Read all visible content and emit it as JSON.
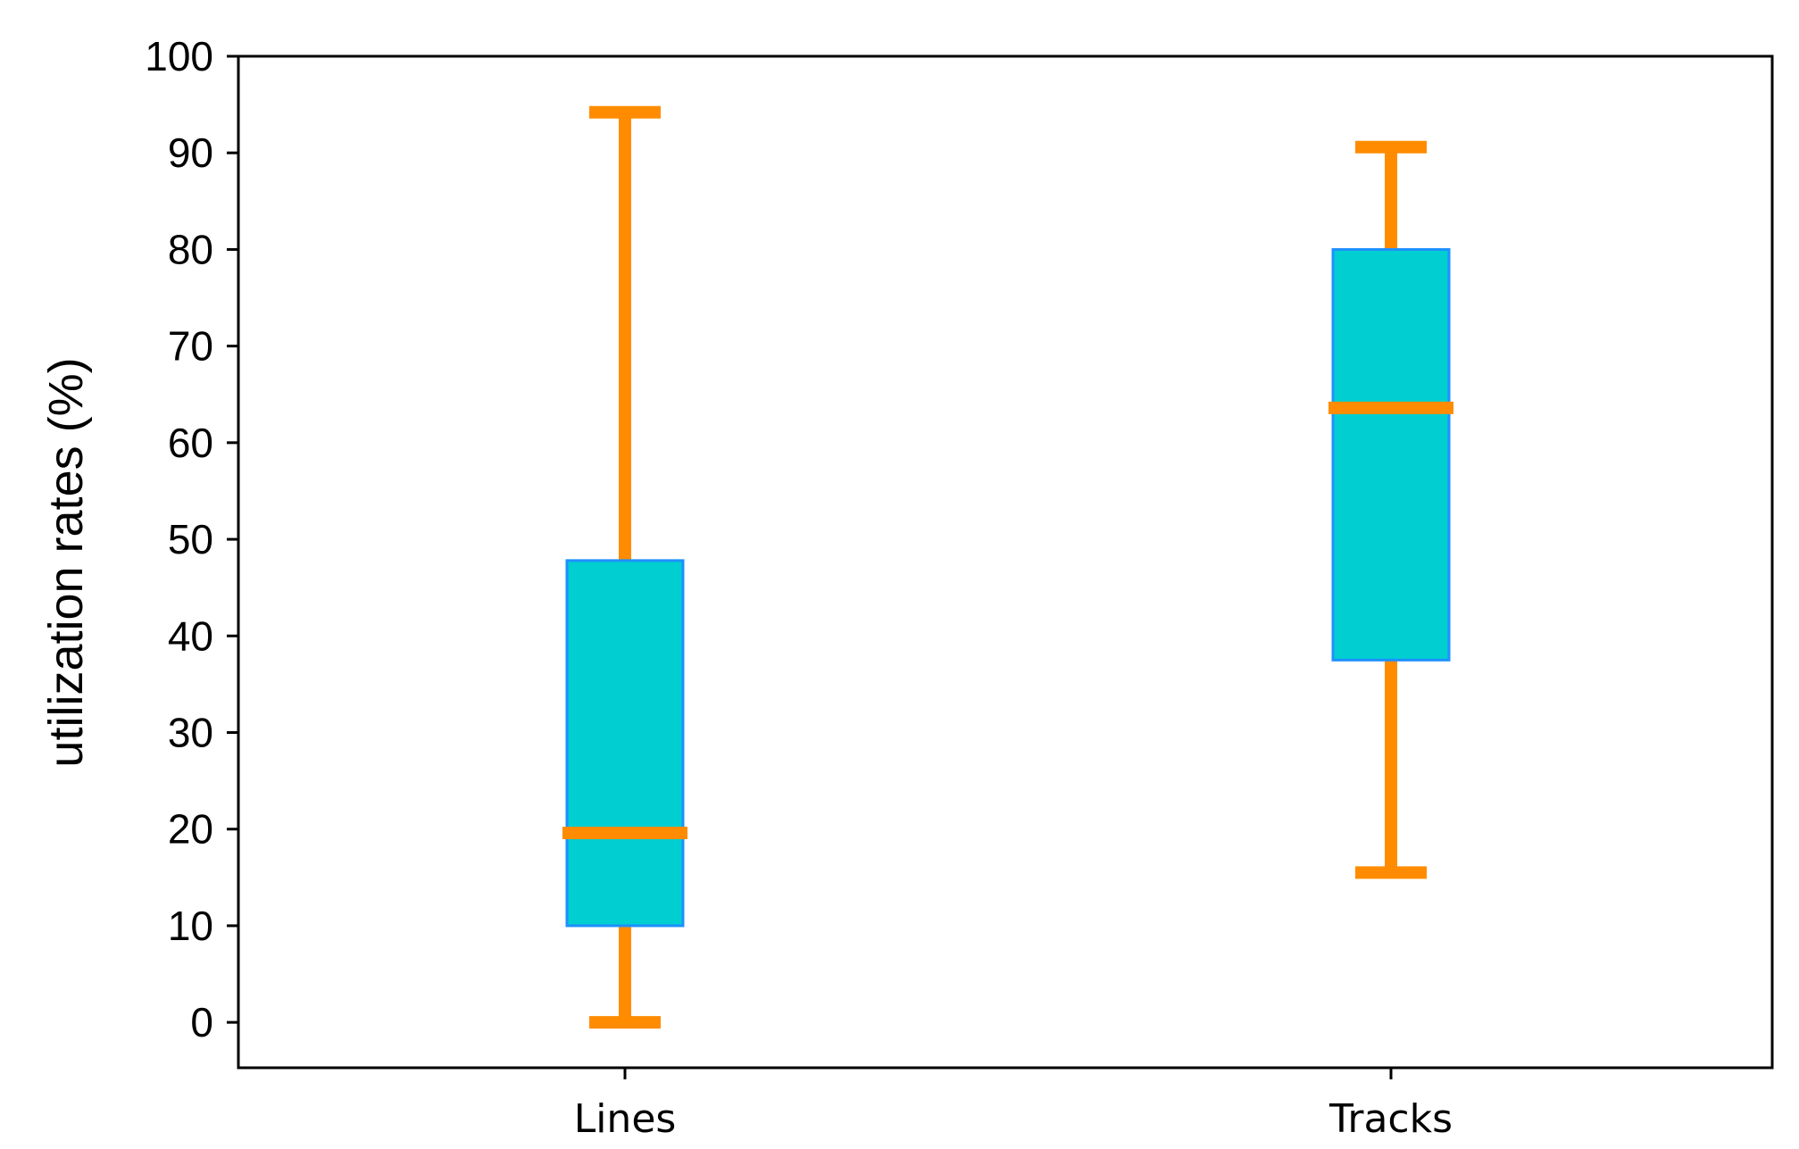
{
  "chart_data": {
    "type": "box",
    "title": "",
    "xlabel": "",
    "ylabel": "utilization rates (%)",
    "ylim": [
      -4.7,
      100
    ],
    "yticks": [
      0,
      10,
      20,
      30,
      40,
      50,
      60,
      70,
      80,
      90,
      100
    ],
    "ytick_labels": [
      "0",
      "10",
      "20",
      "30",
      "40",
      "50",
      "60",
      "70",
      "80",
      "90",
      "100"
    ],
    "categories": [
      "Lines",
      "Tracks"
    ],
    "boxes": [
      {
        "category": "Lines",
        "whisker_low": 0,
        "q1": 10,
        "median": 19.6,
        "q3": 47.8,
        "whisker_high": 94.2
      },
      {
        "category": "Tracks",
        "whisker_low": 15.5,
        "q1": 37.5,
        "median": 63.6,
        "q3": 80,
        "whisker_high": 90.6
      }
    ],
    "grid": false,
    "legend": "none",
    "colors": {
      "box_fill": "#00CED1",
      "box_edge": "#1E90FF",
      "whisker": "#FF8C00",
      "median": "#FF8C00",
      "axes": "#000000"
    }
  }
}
